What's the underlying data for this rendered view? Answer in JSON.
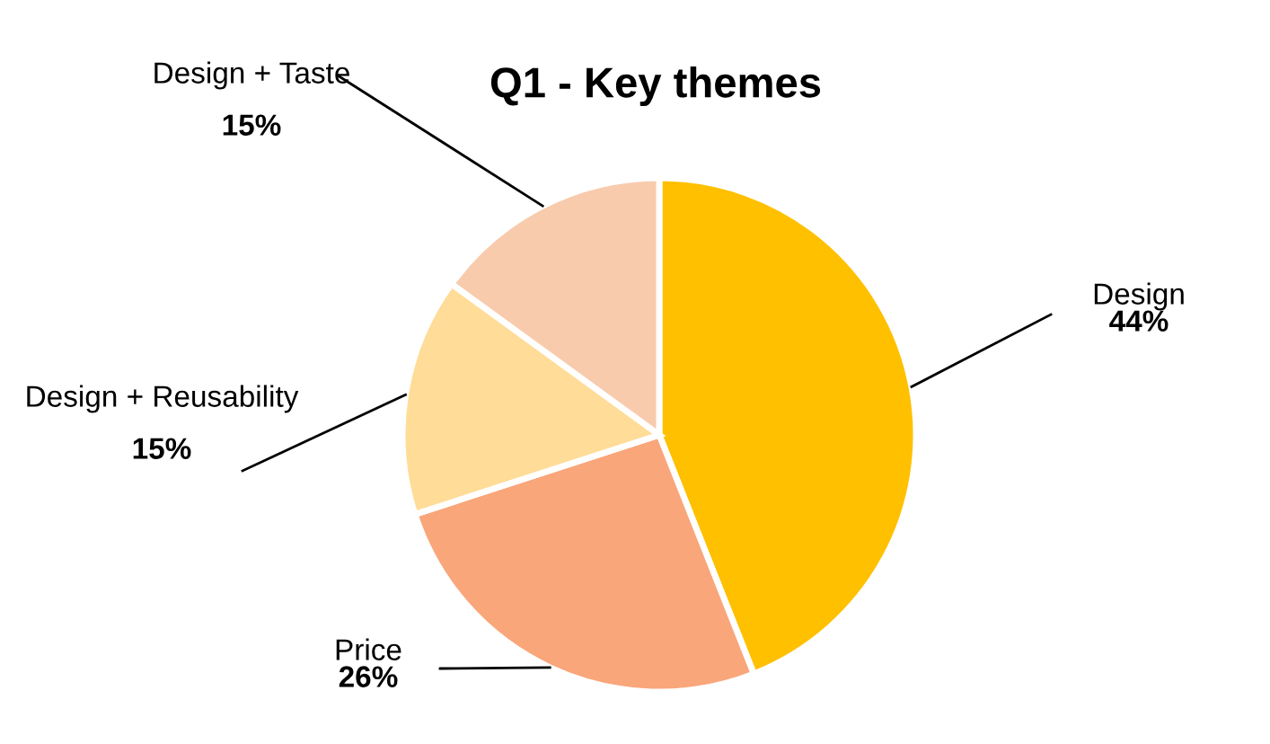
{
  "chart_data": {
    "type": "pie",
    "title": "Q1 - Key themes",
    "categories": [
      "Design",
      "Price",
      "Design + Reusability",
      "Design + Taste"
    ],
    "values": [
      44,
      26,
      15,
      15
    ],
    "colors": [
      "#ffc000",
      "#f9a67a",
      "#ffdc97",
      "#f8cbad"
    ],
    "value_labels": [
      "44%",
      "26%",
      "15%",
      "15%"
    ],
    "legend": false
  }
}
